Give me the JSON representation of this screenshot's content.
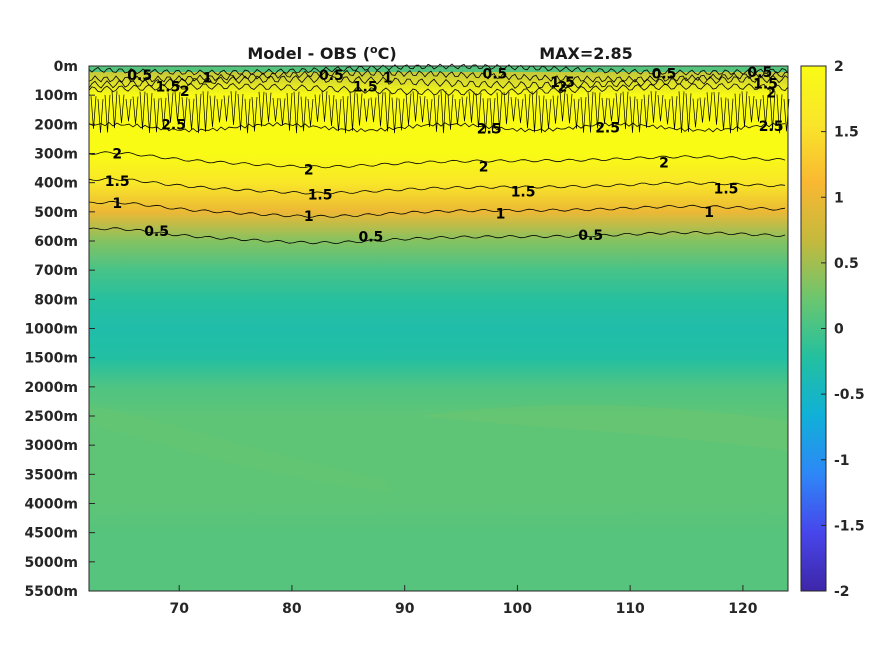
{
  "chart_data": {
    "type": "heatmap",
    "title_main": "Model - OBS (",
    "title_sup": "o",
    "title_unit": "C)",
    "max_label": "MAX=2.85",
    "xlabel": "",
    "ylabel": "",
    "x_range": [
      62,
      124
    ],
    "x_ticks": [
      70,
      80,
      90,
      100,
      110,
      120
    ],
    "x_tick_labels": [
      "70",
      "80",
      "90",
      "100",
      "110",
      "120"
    ],
    "y_tick_labels": [
      "0m",
      "100m",
      "200m",
      "300m",
      "400m",
      "500m",
      "600m",
      "700m",
      "800m",
      "1000m",
      "1500m",
      "2000m",
      "2500m",
      "3000m",
      "3500m",
      "4000m",
      "4500m",
      "5000m",
      "5500m"
    ],
    "y_direction": "depth increasing downward",
    "colorbar": {
      "range": [
        -2,
        2
      ],
      "ticks": [
        2,
        1.5,
        1,
        0.5,
        0,
        -0.5,
        -1,
        -1.5,
        -2
      ],
      "tick_labels": [
        "2",
        "1.5",
        "1",
        "0.5",
        "0",
        "-0.5",
        "-1",
        "-1.5",
        "-2"
      ],
      "colors": [
        "#3e26a8",
        "#4746eb",
        "#2e87f7",
        "#10b0d8",
        "#23c0a0",
        "#6ac66f",
        "#c4b93d",
        "#f9b832",
        "#f9e52a",
        "#f9fb15"
      ]
    },
    "depth_profile": [
      {
        "depth": "0m",
        "value": 0.6
      },
      {
        "depth": "100m",
        "value": 2.2
      },
      {
        "depth": "200m",
        "value": 2.6
      },
      {
        "depth": "300m",
        "value": 2.1
      },
      {
        "depth": "400m",
        "value": 1.6
      },
      {
        "depth": "500m",
        "value": 1.0
      },
      {
        "depth": "600m",
        "value": 0.35
      },
      {
        "depth": "700m",
        "value": 0.0
      },
      {
        "depth": "800m",
        "value": -0.2
      },
      {
        "depth": "1000m",
        "value": -0.3
      },
      {
        "depth": "1500m",
        "value": -0.25
      },
      {
        "depth": "2000m",
        "value": 0.05
      },
      {
        "depth": "2500m",
        "value": 0.15
      },
      {
        "depth": "3000m",
        "value": 0.15
      },
      {
        "depth": "3500m",
        "value": 0.15
      },
      {
        "depth": "4000m",
        "value": 0.15
      },
      {
        "depth": "4500m",
        "value": 0.1
      },
      {
        "depth": "5000m",
        "value": 0.1
      },
      {
        "depth": "5500m",
        "value": 0.1
      }
    ],
    "contour_levels": [
      0.5,
      1,
      1.5,
      2,
      2.5
    ],
    "contour_labels": [
      {
        "text": "2",
        "x": 64.5,
        "depth_index": 3.0
      },
      {
        "text": "2",
        "x": 81.5,
        "depth_index": 3.55
      },
      {
        "text": "2",
        "x": 97,
        "depth_index": 3.45
      },
      {
        "text": "2",
        "x": 113,
        "depth_index": 3.3
      },
      {
        "text": "1.5",
        "x": 64.5,
        "depth_index": 3.95
      },
      {
        "text": "1.5",
        "x": 82.5,
        "depth_index": 4.4
      },
      {
        "text": "1.5",
        "x": 100.5,
        "depth_index": 4.3
      },
      {
        "text": "1.5",
        "x": 118.5,
        "depth_index": 4.2
      },
      {
        "text": "1",
        "x": 64.5,
        "depth_index": 4.7
      },
      {
        "text": "1",
        "x": 81.5,
        "depth_index": 5.15
      },
      {
        "text": "1",
        "x": 98.5,
        "depth_index": 5.05
      },
      {
        "text": "1",
        "x": 117,
        "depth_index": 5.0
      },
      {
        "text": "0.5",
        "x": 68,
        "depth_index": 5.65
      },
      {
        "text": "0.5",
        "x": 87,
        "depth_index": 5.85
      },
      {
        "text": "0.5",
        "x": 106.5,
        "depth_index": 5.8
      },
      {
        "text": "0.5",
        "x": 66.5,
        "depth_index": 0.3
      },
      {
        "text": "0.5",
        "x": 83.5,
        "depth_index": 0.3
      },
      {
        "text": "0.5",
        "x": 98,
        "depth_index": 0.25
      },
      {
        "text": "0.5",
        "x": 113,
        "depth_index": 0.25
      },
      {
        "text": "0.5",
        "x": 121.5,
        "depth_index": 0.2
      },
      {
        "text": "1.5",
        "x": 69,
        "depth_index": 0.7
      },
      {
        "text": "2",
        "x": 70.5,
        "depth_index": 0.85
      },
      {
        "text": "1",
        "x": 72.5,
        "depth_index": 0.4
      },
      {
        "text": "1.5",
        "x": 86.5,
        "depth_index": 0.7
      },
      {
        "text": "1",
        "x": 88.5,
        "depth_index": 0.4
      },
      {
        "text": "1.5",
        "x": 104,
        "depth_index": 0.55
      },
      {
        "text": "2",
        "x": 104,
        "depth_index": 0.7
      },
      {
        "text": "1.5",
        "x": 122,
        "depth_index": 0.6
      },
      {
        "text": "2",
        "x": 122.5,
        "depth_index": 0.9
      },
      {
        "text": "2.5",
        "x": 69.5,
        "depth_index": 2.0
      },
      {
        "text": "2.5",
        "x": 97.5,
        "depth_index": 2.15
      },
      {
        "text": "2.5",
        "x": 108,
        "depth_index": 2.1
      },
      {
        "text": "2.5",
        "x": 122.5,
        "depth_index": 2.05
      }
    ]
  }
}
